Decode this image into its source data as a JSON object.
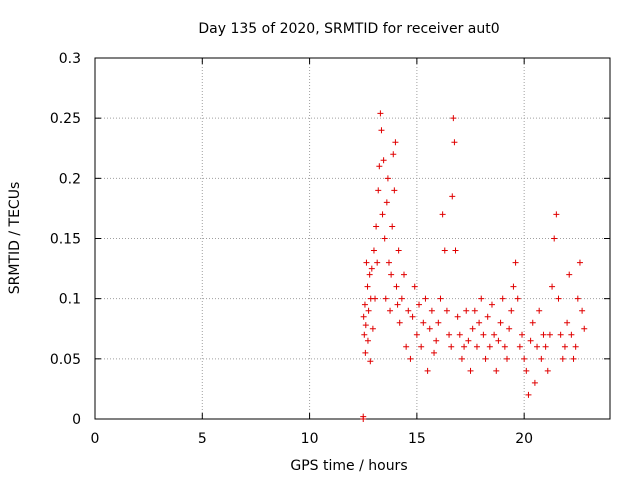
{
  "chart_data": {
    "type": "scatter",
    "title": "Day 135 of 2020, SRMTID for receiver aut0",
    "xlabel": "GPS time / hours",
    "ylabel": "SRMTID / TECUs",
    "xlim": [
      0,
      24
    ],
    "ylim": [
      0,
      0.3
    ],
    "x_ticks": [
      0,
      5,
      10,
      15,
      20
    ],
    "y_ticks": [
      0,
      0.05,
      0.1,
      0.15,
      0.2,
      0.25,
      0.3
    ],
    "x_tick_labels": [
      "0",
      "5",
      "10",
      "15",
      "20"
    ],
    "y_tick_labels": [
      "0",
      "0.05",
      "0.1",
      "0.15",
      "0.2",
      "0.25",
      "0.3"
    ],
    "grid": true,
    "marker": "+",
    "series": [
      {
        "name": "SRMTID",
        "color": "#e00000",
        "x": [
          12.5,
          12.5,
          12.52,
          12.55,
          12.58,
          12.6,
          12.62,
          12.65,
          12.7,
          12.72,
          12.75,
          12.8,
          12.83,
          12.85,
          12.9,
          12.95,
          13.0,
          13.05,
          13.1,
          13.15,
          13.2,
          13.25,
          13.3,
          13.35,
          13.4,
          13.45,
          13.5,
          13.55,
          13.6,
          13.65,
          13.7,
          13.75,
          13.8,
          13.85,
          13.9,
          13.95,
          14.0,
          14.05,
          14.1,
          14.15,
          14.2,
          14.3,
          14.4,
          14.5,
          14.6,
          14.7,
          14.8,
          14.9,
          15.0,
          15.1,
          15.2,
          15.3,
          15.4,
          15.5,
          15.6,
          15.7,
          15.8,
          15.9,
          16.0,
          16.1,
          16.2,
          16.3,
          16.4,
          16.5,
          16.6,
          16.65,
          16.7,
          16.75,
          16.8,
          16.9,
          17.0,
          17.1,
          17.2,
          17.3,
          17.4,
          17.5,
          17.6,
          17.7,
          17.8,
          17.9,
          18.0,
          18.1,
          18.2,
          18.3,
          18.4,
          18.5,
          18.6,
          18.7,
          18.8,
          18.9,
          19.0,
          19.1,
          19.2,
          19.3,
          19.4,
          19.5,
          19.6,
          19.7,
          19.8,
          19.9,
          20.0,
          20.1,
          20.2,
          20.3,
          20.4,
          20.5,
          20.6,
          20.7,
          20.8,
          20.9,
          21.0,
          21.1,
          21.2,
          21.3,
          21.4,
          21.5,
          21.6,
          21.7,
          21.8,
          21.9,
          22.0,
          22.1,
          22.2,
          22.3,
          22.4,
          22.5,
          22.6,
          22.7,
          22.8
        ],
        "y": [
          0.0,
          0.002,
          0.085,
          0.07,
          0.095,
          0.055,
          0.078,
          0.13,
          0.11,
          0.065,
          0.09,
          0.12,
          0.048,
          0.1,
          0.125,
          0.075,
          0.14,
          0.1,
          0.16,
          0.13,
          0.19,
          0.21,
          0.254,
          0.24,
          0.17,
          0.215,
          0.15,
          0.1,
          0.18,
          0.2,
          0.13,
          0.09,
          0.12,
          0.16,
          0.22,
          0.19,
          0.23,
          0.11,
          0.095,
          0.14,
          0.08,
          0.1,
          0.12,
          0.06,
          0.09,
          0.05,
          0.085,
          0.11,
          0.07,
          0.095,
          0.06,
          0.08,
          0.1,
          0.04,
          0.075,
          0.09,
          0.055,
          0.065,
          0.08,
          0.1,
          0.17,
          0.14,
          0.09,
          0.07,
          0.06,
          0.185,
          0.25,
          0.23,
          0.14,
          0.085,
          0.07,
          0.05,
          0.06,
          0.09,
          0.065,
          0.04,
          0.075,
          0.09,
          0.06,
          0.08,
          0.1,
          0.07,
          0.05,
          0.085,
          0.06,
          0.095,
          0.07,
          0.04,
          0.065,
          0.08,
          0.1,
          0.06,
          0.05,
          0.075,
          0.09,
          0.11,
          0.13,
          0.1,
          0.06,
          0.07,
          0.05,
          0.04,
          0.02,
          0.065,
          0.08,
          0.03,
          0.06,
          0.09,
          0.05,
          0.07,
          0.06,
          0.04,
          0.07,
          0.11,
          0.15,
          0.17,
          0.1,
          0.07,
          0.05,
          0.06,
          0.08,
          0.12,
          0.07,
          0.05,
          0.06,
          0.1,
          0.13,
          0.09,
          0.075
        ]
      }
    ]
  }
}
